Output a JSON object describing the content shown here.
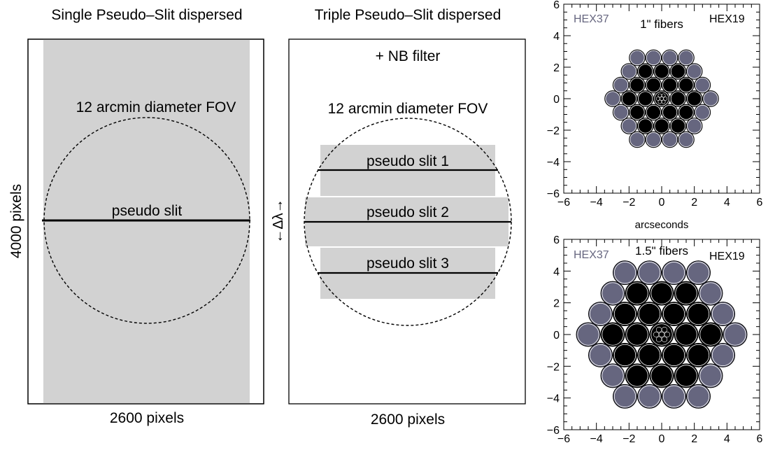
{
  "panel_single": {
    "title": "Single Pseudo–Slit dispersed",
    "fov_label": "12 arcmin diameter FOV",
    "slit_label": "pseudo slit",
    "xlabel": "2600 pixels",
    "ylabel": "4000 pixels"
  },
  "panel_triple": {
    "title": "Triple Pseudo–Slit dispersed",
    "filter_label": "+ NB filter",
    "fov_label": "12 arcmin diameter FOV",
    "slit_labels": [
      "pseudo slit 1",
      "pseudo slit 2",
      "pseudo slit 3"
    ],
    "xlabel": "2600 pixels",
    "dispersion_label": "←Δλ→"
  },
  "colors": {
    "hex37": "#66667f",
    "hex19": "#000000",
    "slit_fill": "#d2d2d2"
  },
  "chart_data": [
    {
      "type": "scatter",
      "title": "1\" fibers",
      "legend": [
        "HEX37",
        "HEX19"
      ],
      "xlabel": "arcseconds",
      "ylabel": "",
      "xlim": [
        -6,
        6
      ],
      "ylim": [
        -6,
        6
      ],
      "xticks": [
        -6,
        -4,
        -2,
        0,
        2,
        4,
        6
      ],
      "yticks": [
        -6,
        -4,
        -2,
        0,
        2,
        4,
        6
      ],
      "fiber_diameter_arcsec": 1.0
    },
    {
      "type": "scatter",
      "title": "1.5\" fibers",
      "legend": [
        "HEX37",
        "HEX19"
      ],
      "xlabel": "",
      "ylabel": "",
      "xlim": [
        -6,
        6
      ],
      "ylim": [
        -6,
        6
      ],
      "xticks": [
        -6,
        -4,
        -2,
        0,
        2,
        4,
        6
      ],
      "yticks": [
        -6,
        -4,
        -2,
        0,
        2,
        4,
        6
      ],
      "fiber_diameter_arcsec": 1.5
    }
  ]
}
